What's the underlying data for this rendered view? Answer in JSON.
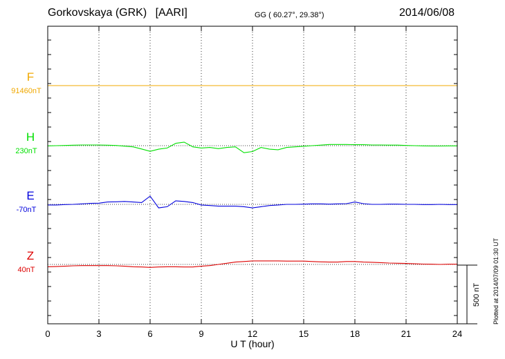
{
  "header": {
    "station": "Gorkovskaya (GRK)",
    "institute": "[AARI]",
    "coords": "GG ( 60.27°,  29.38°)",
    "date": "2014/06/08"
  },
  "footer_note": "Plotted at 2014/07/09 01:30 UT",
  "colors": {
    "F": "#f0a800",
    "H": "#00e000",
    "E": "#0000dd",
    "Z": "#dd0000"
  },
  "chart_data": {
    "type": "line",
    "xlabel": "U T (hour)",
    "xlim": [
      0,
      24
    ],
    "xticks": [
      "0",
      "3",
      "6",
      "9",
      "12",
      "15",
      "18",
      "21",
      "24"
    ],
    "scale_bar": "500 nT",
    "scale_bar_nT": 500,
    "grid": "dotted vertical at every 3 hours",
    "x": [
      0,
      0.5,
      1,
      1.5,
      2,
      2.5,
      3,
      3.5,
      4,
      4.5,
      5,
      5.5,
      6,
      6.5,
      7,
      7.5,
      8,
      8.5,
      9,
      9.5,
      10,
      10.5,
      11,
      11.5,
      12,
      12.5,
      13,
      13.5,
      14,
      14.5,
      15,
      15.5,
      16,
      16.5,
      17,
      17.5,
      18,
      18.5,
      19,
      19.5,
      20,
      20.5,
      21,
      21.5,
      22,
      22.5,
      23,
      23.5,
      24
    ],
    "series": [
      {
        "name": "F",
        "baseline_label": "91460nT",
        "values": [
          0,
          0,
          0,
          0,
          0,
          0,
          0,
          0,
          0,
          0,
          0,
          0,
          0,
          0,
          0,
          0,
          0,
          0,
          0,
          0,
          0,
          0,
          0,
          0,
          0,
          0,
          0,
          0,
          0,
          0,
          0,
          0,
          0,
          0,
          0,
          0,
          0,
          0,
          0,
          0,
          0,
          0,
          0,
          0,
          0,
          0,
          0,
          0,
          0
        ]
      },
      {
        "name": "H",
        "baseline_label": "230nT",
        "values": [
          -2,
          0,
          2,
          4,
          6,
          6,
          6,
          4,
          2,
          -4,
          -10,
          -28,
          -48,
          -30,
          -20,
          20,
          30,
          -10,
          -20,
          -15,
          -25,
          -15,
          -10,
          -60,
          -50,
          -15,
          -30,
          -35,
          -15,
          -10,
          -5,
          0,
          5,
          10,
          10,
          10,
          8,
          8,
          6,
          6,
          5,
          5,
          2,
          0,
          -2,
          -3,
          -3,
          -2,
          -2
        ]
      },
      {
        "name": "E",
        "baseline_label": "-70nT",
        "values": [
          -5,
          -5,
          -2,
          0,
          4,
          8,
          10,
          20,
          22,
          25,
          20,
          15,
          70,
          -30,
          -20,
          30,
          25,
          15,
          -5,
          -10,
          -15,
          -15,
          -15,
          -20,
          -30,
          -20,
          -10,
          -5,
          0,
          0,
          2,
          4,
          4,
          2,
          4,
          6,
          20,
          6,
          0,
          0,
          2,
          2,
          0,
          0,
          -2,
          -2,
          0,
          -2,
          -2
        ]
      },
      {
        "name": "Z",
        "baseline_label": "40nT",
        "values": [
          -20,
          -18,
          -15,
          -12,
          -10,
          -10,
          -10,
          -10,
          -12,
          -15,
          -20,
          -22,
          -25,
          -22,
          -20,
          -20,
          -22,
          -22,
          -15,
          -10,
          0,
          10,
          20,
          25,
          30,
          30,
          30,
          30,
          28,
          28,
          28,
          25,
          22,
          20,
          20,
          25,
          25,
          20,
          18,
          15,
          12,
          10,
          8,
          5,
          3,
          2,
          0,
          2,
          2
        ]
      }
    ]
  }
}
